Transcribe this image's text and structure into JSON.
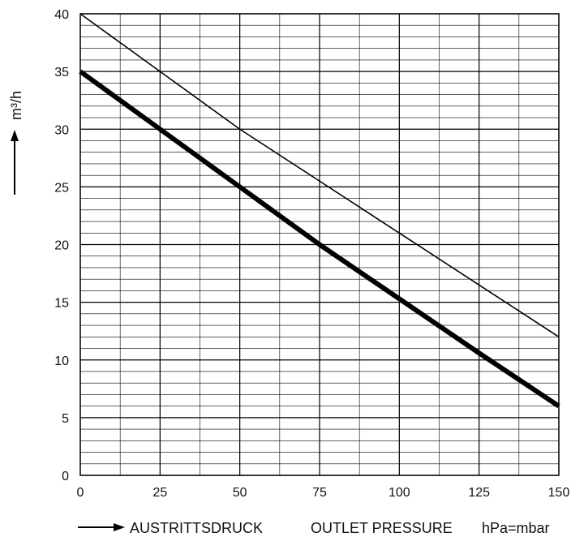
{
  "chart_data": {
    "type": "line",
    "xlim": [
      0,
      150
    ],
    "ylim": [
      0,
      40
    ],
    "x_ticks": [
      0,
      25,
      50,
      75,
      100,
      125,
      150
    ],
    "y_ticks": [
      0,
      5,
      10,
      15,
      20,
      25,
      30,
      35,
      40
    ],
    "x_minor_step": 12.5,
    "y_minor_step": 1,
    "grid": true,
    "ylabel": "m³/h",
    "xlabel_parts": [
      "AUSTRITTSDRUCK",
      "OUTLET PRESSURE",
      "hPa=mbar"
    ],
    "series": [
      {
        "x": [
          0,
          25,
          50,
          75,
          100,
          125,
          150
        ],
        "y": [
          40,
          35,
          30,
          25.5,
          21,
          16.5,
          12
        ],
        "line": "thin"
      },
      {
        "x": [
          0,
          25,
          50,
          75,
          100,
          125,
          150
        ],
        "y": [
          35,
          30,
          25,
          20,
          15.3,
          10.6,
          6
        ],
        "line": "thick"
      }
    ]
  }
}
